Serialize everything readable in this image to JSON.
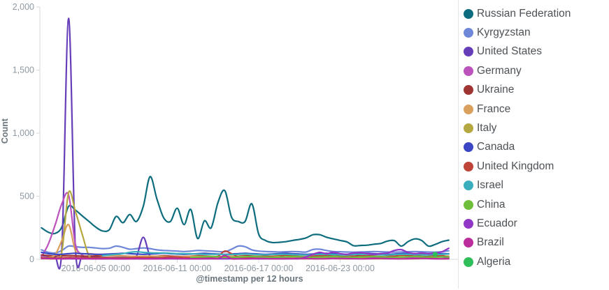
{
  "chart_data": {
    "type": "line",
    "title": "",
    "xlabel": "@timestamp per 12 hours",
    "ylabel": "Count",
    "x_start": "2016-06-01 00:00",
    "x_interval_hours": 12,
    "x_tick_labels": [
      "2016-06-05 00:00",
      "2016-06-11 00:00",
      "2016-06-17 00:00",
      "2016-06-23 00:00"
    ],
    "y_tick_labels": [
      "0",
      "500",
      "1,000",
      "1,500",
      "2,000"
    ],
    "y_tick_values": [
      0,
      500,
      1000,
      1500,
      2000
    ],
    "ylim": [
      0,
      2000
    ],
    "grid": false,
    "legend_position": "right",
    "colors": {
      "axis_text": "#8e99a2",
      "axis_line": "#d6dadd",
      "axis_title_text": "#69757d",
      "legend_text": "#4d5257"
    },
    "series": [
      {
        "name": "Russian Federation",
        "color": "#0d6d7e",
        "values": [
          250,
          215,
          205,
          255,
          420,
          390,
          345,
          300,
          255,
          225,
          235,
          340,
          290,
          355,
          300,
          420,
          655,
          480,
          330,
          300,
          405,
          275,
          395,
          165,
          305,
          250,
          450,
          545,
          335,
          300,
          300,
          440,
          200,
          150,
          133,
          135,
          140,
          150,
          158,
          170,
          195,
          195,
          175,
          162,
          150,
          138,
          108,
          110,
          112,
          120,
          126,
          145,
          148,
          105,
          140,
          162,
          150,
          105,
          118,
          140,
          152
        ]
      },
      {
        "name": "Kyrgyzstan",
        "color": "#6f87d8",
        "values": [
          75,
          55,
          50,
          70,
          105,
          100,
          95,
          95,
          90,
          85,
          88,
          105,
          95,
          80,
          85,
          90,
          85,
          75,
          70,
          68,
          65,
          62,
          65,
          70,
          68,
          65,
          62,
          60,
          80,
          105,
          100,
          75,
          65,
          62,
          60,
          58,
          60,
          62,
          60,
          58,
          78,
          80,
          70,
          62,
          60,
          58,
          57,
          58,
          60,
          62,
          60,
          58,
          57,
          58,
          60,
          62,
          60,
          58,
          57,
          60,
          68
        ]
      },
      {
        "name": "United States",
        "color": "#663db8",
        "values": [
          30,
          25,
          20,
          80,
          1910,
          90,
          25,
          20,
          18,
          15,
          14,
          15,
          16,
          18,
          25,
          175,
          25,
          18,
          16,
          15,
          16,
          18,
          20,
          18,
          16,
          15,
          16,
          18,
          20,
          18,
          16,
          15,
          16,
          18,
          20,
          18,
          16,
          15,
          16,
          18,
          20,
          18,
          16,
          15,
          16,
          18,
          20,
          18,
          16,
          15,
          16,
          18,
          20,
          18,
          16,
          15,
          16,
          18,
          20,
          18,
          16
        ]
      },
      {
        "name": "Germany",
        "color": "#bc52bc",
        "values": [
          20,
          120,
          270,
          440,
          510,
          120,
          35,
          15,
          10,
          8,
          6,
          5,
          5,
          6,
          8,
          6,
          5,
          5,
          6,
          8,
          10,
          8,
          6,
          5,
          5,
          6,
          8,
          10,
          8,
          6,
          5,
          5,
          6,
          8,
          10,
          8,
          6,
          5,
          5,
          6,
          8,
          10,
          8,
          6,
          5,
          5,
          6,
          8,
          10,
          8,
          6,
          5,
          5,
          6,
          8,
          10,
          8,
          6,
          5,
          5,
          6
        ]
      },
      {
        "name": "Ukraine",
        "color": "#9e3533",
        "values": [
          35,
          30,
          25,
          28,
          30,
          28,
          26,
          25,
          27,
          30,
          32,
          30,
          27,
          25,
          22,
          20,
          22,
          25,
          28,
          26,
          24,
          22,
          25,
          28,
          26,
          24,
          22,
          20,
          22,
          25,
          28,
          26,
          24,
          22,
          25,
          28,
          26,
          24,
          22,
          20,
          22,
          25,
          28,
          26,
          24,
          22,
          25,
          28,
          26,
          24,
          22,
          20,
          22,
          25,
          28,
          26,
          24,
          22,
          25,
          22,
          18
        ]
      },
      {
        "name": "France",
        "color": "#daa05d",
        "values": [
          10,
          15,
          35,
          150,
          275,
          70,
          45,
          45,
          40,
          35,
          30,
          28,
          26,
          25,
          24,
          25,
          26,
          25,
          24,
          22,
          22,
          24,
          25,
          24,
          22,
          20,
          22,
          24,
          25,
          24,
          22,
          20,
          22,
          24,
          25,
          24,
          22,
          20,
          22,
          24,
          25,
          24,
          22,
          20,
          18,
          18,
          20,
          22,
          24,
          22,
          20,
          18,
          20,
          22,
          24,
          22,
          20,
          18,
          20,
          24,
          26
        ]
      },
      {
        "name": "Italy",
        "color": "#b6a840",
        "values": [
          5,
          5,
          8,
          60,
          530,
          380,
          200,
          28,
          8,
          5,
          5,
          6,
          8,
          6,
          5,
          5,
          6,
          8,
          6,
          5,
          5,
          6,
          8,
          6,
          5,
          5,
          6,
          8,
          6,
          5,
          5,
          6,
          8,
          6,
          5,
          5,
          6,
          8,
          6,
          5,
          5,
          6,
          8,
          6,
          5,
          5,
          6,
          8,
          6,
          5,
          5,
          6,
          8,
          6,
          5,
          5,
          6,
          8,
          6,
          5,
          5
        ]
      },
      {
        "name": "Canada",
        "color": "#3a46c4",
        "values": [
          55,
          45,
          40,
          40,
          45,
          48,
          45,
          42,
          40,
          40,
          42,
          45,
          48,
          45,
          42,
          40,
          42,
          45,
          48,
          45,
          42,
          40,
          42,
          45,
          48,
          45,
          42,
          40,
          42,
          45,
          48,
          45,
          42,
          40,
          42,
          45,
          48,
          45,
          42,
          40,
          42,
          45,
          48,
          45,
          42,
          40,
          42,
          45,
          48,
          45,
          42,
          40,
          42,
          45,
          48,
          45,
          42,
          40,
          42,
          45,
          44
        ]
      },
      {
        "name": "United Kingdom",
        "color": "#bf4438",
        "values": [
          15,
          12,
          10,
          12,
          15,
          14,
          12,
          10,
          12,
          15,
          14,
          12,
          10,
          12,
          15,
          14,
          12,
          10,
          15,
          20,
          18,
          15,
          12,
          15,
          18,
          20,
          25,
          65,
          45,
          20,
          15,
          18,
          22,
          25,
          20,
          18,
          35,
          30,
          22,
          18,
          25,
          30,
          28,
          22,
          35,
          35,
          25,
          20,
          28,
          35,
          40,
          30,
          25,
          35,
          30,
          25,
          40,
          35,
          28,
          30,
          18
        ]
      },
      {
        "name": "Israel",
        "color": "#3aaebc",
        "values": [
          null,
          null,
          null,
          null,
          null,
          null,
          null,
          null,
          null,
          30,
          35,
          40,
          45,
          55,
          60,
          55,
          52,
          50,
          50,
          48,
          45,
          45,
          44,
          42,
          40,
          40,
          40,
          38,
          38,
          40,
          42,
          40,
          38,
          36,
          38,
          40,
          40,
          38,
          36,
          35,
          38,
          40,
          40,
          38,
          36,
          35,
          38,
          40,
          40,
          38,
          36,
          35,
          38,
          40,
          40,
          38,
          36,
          35,
          38,
          40,
          42
        ]
      },
      {
        "name": "China",
        "color": "#6fbe3a",
        "values": [
          null,
          null,
          null,
          null,
          null,
          null,
          null,
          null,
          null,
          null,
          null,
          null,
          null,
          null,
          null,
          null,
          null,
          null,
          null,
          null,
          null,
          null,
          15,
          18,
          20,
          22,
          20,
          18,
          16,
          18,
          20,
          22,
          20,
          18,
          16,
          18,
          20,
          22,
          20,
          18,
          16,
          18,
          20,
          22,
          20,
          18,
          16,
          18,
          20,
          22,
          20,
          18,
          16,
          18,
          20,
          22,
          20,
          18,
          16,
          20,
          18
        ]
      },
      {
        "name": "Ecuador",
        "color": "#9137c8",
        "values": [
          null,
          null,
          null,
          4,
          5,
          4,
          4,
          5,
          4,
          4,
          5,
          4,
          4,
          5,
          4,
          4,
          5,
          4,
          4,
          5,
          4,
          4,
          5,
          4,
          4,
          5,
          4,
          4,
          5,
          4,
          4,
          5,
          4,
          4,
          5,
          4,
          4,
          5,
          6,
          20,
          40,
          55,
          45,
          57,
          45,
          40,
          50,
          53,
          45,
          40,
          45,
          50,
          70,
          77,
          55,
          45,
          50,
          45,
          50,
          60,
          88
        ]
      },
      {
        "name": "Brazil",
        "color": "#bb2c9c",
        "values": [
          8,
          6,
          5,
          5,
          6,
          8,
          6,
          5,
          4,
          5,
          6,
          5,
          4,
          5,
          6,
          5,
          4,
          5,
          6,
          8,
          6,
          5,
          4,
          5,
          6,
          8,
          6,
          30,
          5,
          4,
          5,
          6,
          8,
          6,
          5,
          4,
          5,
          6,
          8,
          6,
          5,
          4,
          5,
          6,
          8,
          6,
          5,
          4,
          5,
          6,
          8,
          6,
          5,
          4,
          5,
          6,
          8,
          6,
          5,
          4,
          5
        ]
      },
      {
        "name": "Algeria",
        "color": "#2fbe5a",
        "values": [
          null,
          null,
          null,
          null,
          null,
          null,
          null,
          null,
          null,
          null,
          null,
          null,
          null,
          null,
          null,
          null,
          null,
          null,
          null,
          null,
          null,
          null,
          null,
          null,
          null,
          null,
          null,
          null,
          null,
          null,
          null,
          null,
          null,
          null,
          null,
          null,
          null,
          null,
          null,
          null,
          null,
          null,
          null,
          null,
          null,
          null,
          null,
          null,
          null,
          null,
          null,
          null,
          null,
          null,
          null,
          null,
          null,
          null,
          40,
          null,
          null
        ]
      }
    ]
  },
  "legend": {
    "items": [
      {
        "label": "Russian Federation"
      },
      {
        "label": "Kyrgyzstan"
      },
      {
        "label": "United States"
      },
      {
        "label": "Germany"
      },
      {
        "label": "Ukraine"
      },
      {
        "label": "France"
      },
      {
        "label": "Italy"
      },
      {
        "label": "Canada"
      },
      {
        "label": "United Kingdom"
      },
      {
        "label": "Israel"
      },
      {
        "label": "China"
      },
      {
        "label": "Ecuador"
      },
      {
        "label": "Brazil"
      },
      {
        "label": "Algeria"
      }
    ]
  }
}
